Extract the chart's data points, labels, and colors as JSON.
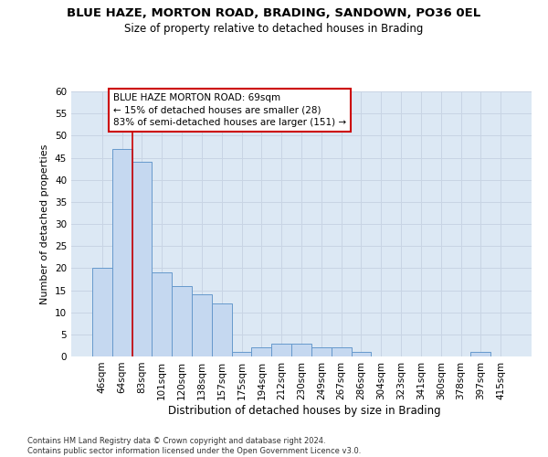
{
  "title": "BLUE HAZE, MORTON ROAD, BRADING, SANDOWN, PO36 0EL",
  "subtitle": "Size of property relative to detached houses in Brading",
  "xlabel": "Distribution of detached houses by size in Brading",
  "ylabel": "Number of detached properties",
  "footer_line1": "Contains HM Land Registry data © Crown copyright and database right 2024.",
  "footer_line2": "Contains public sector information licensed under the Open Government Licence v3.0.",
  "categories": [
    "46sqm",
    "64sqm",
    "83sqm",
    "101sqm",
    "120sqm",
    "138sqm",
    "157sqm",
    "175sqm",
    "194sqm",
    "212sqm",
    "230sqm",
    "249sqm",
    "267sqm",
    "286sqm",
    "304sqm",
    "323sqm",
    "341sqm",
    "360sqm",
    "378sqm",
    "397sqm",
    "415sqm"
  ],
  "values": [
    20,
    47,
    44,
    19,
    16,
    14,
    12,
    1,
    2,
    3,
    3,
    2,
    2,
    1,
    0,
    0,
    0,
    0,
    0,
    1,
    0
  ],
  "bar_color": "#c5d8f0",
  "bar_edge_color": "#6699cc",
  "grid_color": "#c8d4e4",
  "plot_bg_color": "#dce8f4",
  "property_line_color": "#cc0000",
  "property_line_x": 1.5,
  "annotation_text": "BLUE HAZE MORTON ROAD: 69sqm\n← 15% of detached houses are smaller (28)\n83% of semi-detached houses are larger (151) →",
  "annotation_box_facecolor": "#ffffff",
  "annotation_box_edgecolor": "#cc0000",
  "ylim": [
    0,
    60
  ],
  "yticks": [
    0,
    5,
    10,
    15,
    20,
    25,
    30,
    35,
    40,
    45,
    50,
    55,
    60
  ],
  "title_fontsize": 9.5,
  "subtitle_fontsize": 8.5,
  "ylabel_fontsize": 8,
  "xlabel_fontsize": 8.5,
  "tick_fontsize": 7.5,
  "annotation_fontsize": 7.5,
  "footer_fontsize": 6
}
